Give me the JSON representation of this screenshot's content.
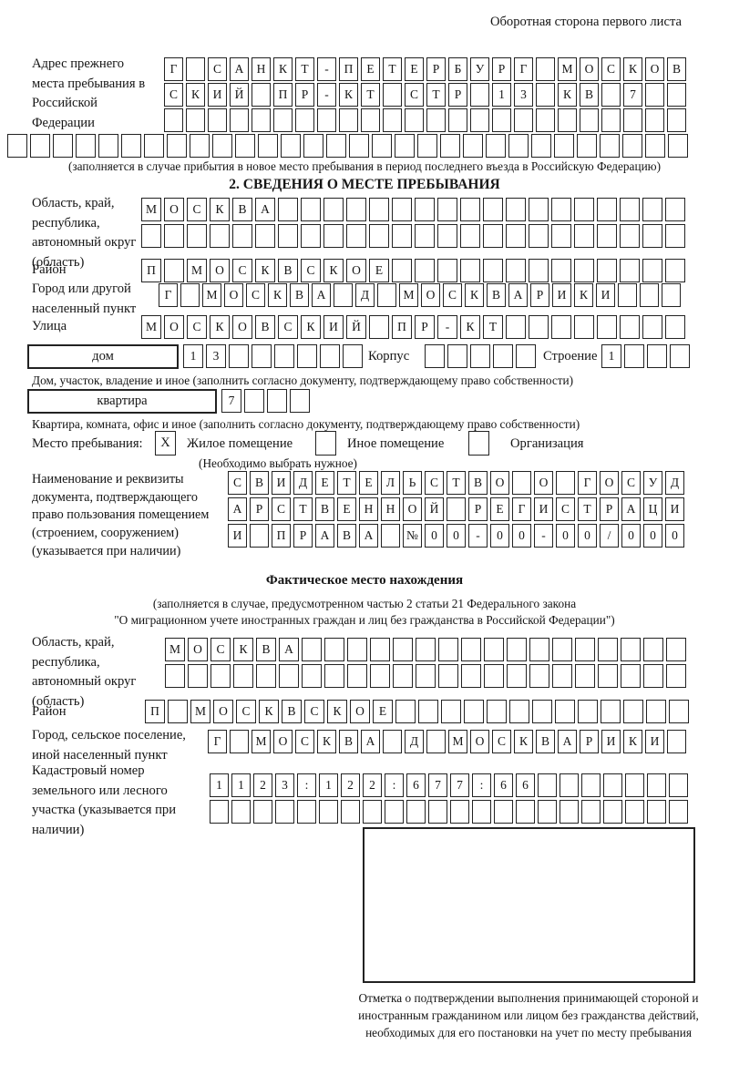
{
  "header": {
    "side_note": "Оборотная сторона первого листа"
  },
  "previous_address": {
    "label": "Адрес прежнего места пребывания в Российской Федерации",
    "rows": [
      [
        "Г",
        "",
        "С",
        "А",
        "Н",
        "К",
        "Т",
        "-",
        "П",
        "Е",
        "Т",
        "Е",
        "Р",
        "Б",
        "У",
        "Р",
        "Г",
        "",
        "М",
        "О",
        "С",
        "К",
        "О",
        "В"
      ],
      [
        "С",
        "К",
        "И",
        "Й",
        "",
        "П",
        "Р",
        "-",
        "К",
        "Т",
        "",
        "С",
        "Т",
        "Р",
        "",
        "1",
        "3",
        "",
        "К",
        "В",
        "",
        "7",
        "",
        ""
      ],
      [
        "",
        "",
        "",
        "",
        "",
        "",
        "",
        "",
        "",
        "",
        "",
        "",
        "",
        "",
        "",
        "",
        "",
        "",
        "",
        "",
        "",
        "",
        "",
        ""
      ]
    ],
    "extra_row": [
      "",
      "",
      "",
      "",
      "",
      "",
      "",
      "",
      "",
      "",
      "",
      "",
      "",
      "",
      "",
      "",
      "",
      "",
      "",
      "",
      "",
      "",
      "",
      "",
      "",
      "",
      "",
      "",
      "",
      ""
    ],
    "note": "(заполняется в случае прибытия в новое место пребывания в период последнего въезда в Российскую Федерацию)"
  },
  "section2": {
    "title": "2. СВЕДЕНИЯ О МЕСТЕ ПРЕБЫВАНИЯ",
    "region": {
      "label": "Область, край, республика, автономный округ (область)",
      "rows": [
        [
          "М",
          "О",
          "С",
          "К",
          "В",
          "А",
          "",
          "",
          "",
          "",
          "",
          "",
          "",
          "",
          "",
          "",
          "",
          "",
          "",
          "",
          "",
          "",
          "",
          ""
        ],
        [
          "",
          "",
          "",
          "",
          "",
          "",
          "",
          "",
          "",
          "",
          "",
          "",
          "",
          "",
          "",
          "",
          "",
          "",
          "",
          "",
          "",
          "",
          "",
          ""
        ]
      ]
    },
    "district": {
      "label": "Район",
      "cells": [
        "П",
        "",
        "М",
        "О",
        "С",
        "К",
        "В",
        "С",
        "К",
        "О",
        "Е",
        "",
        "",
        "",
        "",
        "",
        "",
        "",
        "",
        "",
        "",
        "",
        "",
        ""
      ]
    },
    "city": {
      "label": "Город или другой населенный пункт",
      "cells": [
        "Г",
        "",
        "М",
        "О",
        "С",
        "К",
        "В",
        "А",
        "",
        "Д",
        "",
        "М",
        "О",
        "С",
        "К",
        "В",
        "А",
        "Р",
        "И",
        "К",
        "И",
        "",
        "",
        ""
      ]
    },
    "street": {
      "label": "Улица",
      "cells": [
        "М",
        "О",
        "С",
        "К",
        "О",
        "В",
        "С",
        "К",
        "И",
        "Й",
        "",
        "П",
        "Р",
        "-",
        "К",
        "Т",
        "",
        "",
        "",
        "",
        "",
        "",
        "",
        ""
      ]
    },
    "house": {
      "label": "дом",
      "cells": [
        "1",
        "3",
        "",
        "",
        "",
        "",
        "",
        ""
      ],
      "korpus_label": "Корпус",
      "korpus_cells": [
        "",
        "",
        "",
        "",
        ""
      ],
      "stroenie_label": "Строение",
      "stroenie_cells": [
        "1",
        "",
        "",
        ""
      ]
    },
    "house_note": "Дом, участок, владение и иное (заполнить согласно документу, подтверждающему право собственности)",
    "apartment": {
      "label": "квартира",
      "cells": [
        "7",
        "",
        "",
        ""
      ]
    },
    "apartment_note": "Квартира, комната, офис и иное (заполнить согласно документу, подтверждающему право собственности)",
    "stay_type": {
      "label": "Место пребывания:",
      "options": [
        {
          "label": "Жилое помещение",
          "mark": "X"
        },
        {
          "label": "Иное помещение",
          "mark": ""
        },
        {
          "label": "Организация",
          "mark": ""
        }
      ],
      "note": "(Необходимо выбрать нужное)"
    },
    "document": {
      "label": "Наименование и реквизиты документа, подтверждающего право пользования помещением (строением, сооружением) (указывается при наличии)",
      "rows": [
        [
          "С",
          "В",
          "И",
          "Д",
          "Е",
          "Т",
          "Е",
          "Л",
          "Ь",
          "С",
          "Т",
          "В",
          "О",
          "",
          "О",
          "",
          "Г",
          "О",
          "С",
          "У",
          "Д"
        ],
        [
          "А",
          "Р",
          "С",
          "Т",
          "В",
          "Е",
          "Н",
          "Н",
          "О",
          "Й",
          "",
          "Р",
          "Е",
          "Г",
          "И",
          "С",
          "Т",
          "Р",
          "А",
          "Ц",
          "И"
        ],
        [
          "И",
          "",
          "П",
          "Р",
          "А",
          "В",
          "А",
          "",
          "№",
          "0",
          "0",
          "-",
          "0",
          "0",
          "-",
          "0",
          "0",
          "/",
          "0",
          "0",
          "0"
        ]
      ]
    }
  },
  "actual_location": {
    "title": "Фактическое место нахождения",
    "note_lines": [
      "(заполняется в случае, предусмотренном частью 2 статьи 21 Федерального закона",
      "\"О миграционном учете иностранных граждан и лиц без гражданства в Российской Федерации\")"
    ],
    "region": {
      "label": "Область, край, республика, автономный округ (область)",
      "rows": [
        [
          "М",
          "О",
          "С",
          "К",
          "В",
          "А",
          "",
          "",
          "",
          "",
          "",
          "",
          "",
          "",
          "",
          "",
          "",
          "",
          "",
          "",
          "",
          "",
          ""
        ],
        [
          "",
          "",
          "",
          "",
          "",
          "",
          "",
          "",
          "",
          "",
          "",
          "",
          "",
          "",
          "",
          "",
          "",
          "",
          "",
          "",
          "",
          "",
          ""
        ]
      ]
    },
    "district": {
      "label": "Район",
      "cells": [
        "П",
        "",
        "М",
        "О",
        "С",
        "К",
        "В",
        "С",
        "К",
        "О",
        "Е",
        "",
        "",
        "",
        "",
        "",
        "",
        "",
        "",
        "",
        "",
        "",
        "",
        ""
      ]
    },
    "city": {
      "label": "Город, сельское поселение, иной населенный пункт",
      "cells": [
        "Г",
        "",
        "М",
        "О",
        "С",
        "К",
        "В",
        "А",
        "",
        "Д",
        "",
        "М",
        "О",
        "С",
        "К",
        "В",
        "А",
        "Р",
        "И",
        "К",
        "И",
        ""
      ]
    },
    "cadastral": {
      "label": "Кадастровый номер земельного или лесного участка (указывается при наличии)",
      "rows": [
        [
          "1",
          "1",
          "2",
          "3",
          ":",
          "1",
          "2",
          "2",
          ":",
          "6",
          "7",
          "7",
          ":",
          "6",
          "6",
          "",
          "",
          "",
          "",
          "",
          "",
          ""
        ],
        [
          "",
          "",
          "",
          "",
          "",
          "",
          "",
          "",
          "",
          "",
          "",
          "",
          "",
          "",
          "",
          "",
          "",
          "",
          "",
          "",
          "",
          ""
        ]
      ]
    },
    "confirmation_note": "Отметка о подтверждении выполнения принимающей стороной и иностранным гражданином или лицом без гражданства действий, необходимых для его постановки на учет по месту пребывания"
  }
}
